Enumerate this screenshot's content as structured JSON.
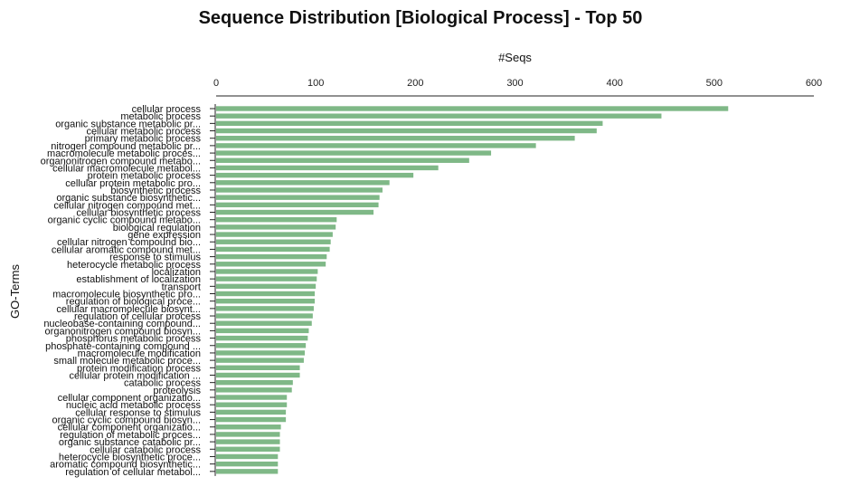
{
  "chart_data": {
    "type": "bar",
    "orientation": "horizontal",
    "title": "Sequence Distribution [Biological Process] - Top 50",
    "xlabel": "#Seqs",
    "ylabel": "GO-Terms",
    "xlim": [
      0,
      600
    ],
    "xticks": [
      0,
      100,
      200,
      300,
      400,
      500,
      600
    ],
    "x_axis_position": "top",
    "grid": false,
    "bar_color": "#7fb887",
    "categories": [
      "cellular process",
      "metabolic process",
      "organic substance metabolic pr...",
      "cellular metabolic process",
      "primary metabolic process",
      "nitrogen compound metabolic pr...",
      "macromolecule metabolic proces...",
      "organonitrogen compound metabo...",
      "cellular macromolecule metabol...",
      "protein metabolic process",
      "cellular protein metabolic pro...",
      "biosynthetic process",
      "organic substance biosynthetic...",
      "cellular nitrogen compound met...",
      "cellular biosynthetic process",
      "organic cyclic compound metabo...",
      "biological regulation",
      "gene expression",
      "cellular nitrogen compound bio...",
      "cellular aromatic compound met...",
      "response to stimulus",
      "heterocycle metabolic process",
      "localization",
      "establishment of localization",
      "transport",
      "macromolecule biosynthetic pro...",
      "regulation of biological proce...",
      "cellular macromolecule biosynt...",
      "regulation of cellular process",
      "nucleobase-containing compound...",
      "organonitrogen compound biosyn...",
      "phosphorus metabolic process",
      "phosphate-containing compound ...",
      "macromolecule modification",
      "small molecule metabolic proce...",
      "protein modification process",
      "cellular protein modification ...",
      "catabolic process",
      "proteolysis",
      "cellular component organizatio...",
      "nucleic acid metabolic process",
      "cellular response to stimulus",
      "organic cyclic compound biosyn...",
      "cellular component organizatio...",
      "regulation of metabolic proces...",
      "organic substance catabolic pr...",
      "cellular catabolic process",
      "heterocycle biosynthetic proce...",
      "aromatic compound biosynthetic...",
      "regulation of cellular metabol..."
    ],
    "values": [
      514,
      447,
      388,
      382,
      360,
      321,
      276,
      254,
      223,
      198,
      174,
      167,
      164,
      163,
      158,
      121,
      120,
      117,
      115,
      114,
      111,
      110,
      102,
      101,
      100,
      99,
      99,
      98,
      97,
      96,
      93,
      92,
      90,
      89,
      88,
      84,
      84,
      77,
      76,
      71,
      71,
      70,
      70,
      65,
      64,
      64,
      64,
      62,
      62,
      62
    ]
  }
}
